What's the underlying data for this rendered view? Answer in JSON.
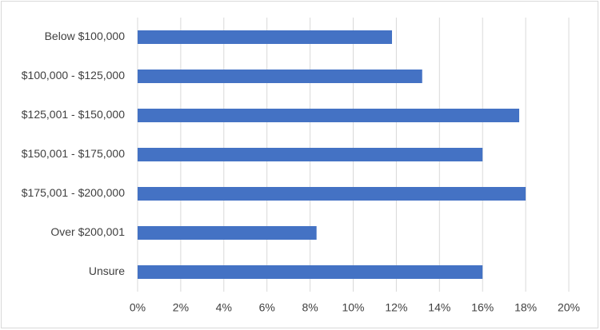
{
  "chart_data": {
    "type": "hbar",
    "categories": [
      "Below $100,000",
      "$100,000 - $125,000",
      "$125,001 - $150,000",
      "$150,001 - $175,000",
      "$175,001 - $200,000",
      "Over $200,001",
      "Unsure"
    ],
    "values": [
      11.8,
      13.2,
      17.7,
      16.0,
      18.0,
      8.3,
      16.0
    ],
    "color": "#4472c4",
    "xlim": [
      0,
      20
    ],
    "xticks": [
      {
        "value": 0,
        "label": "0%"
      },
      {
        "value": 2,
        "label": "2%"
      },
      {
        "value": 4,
        "label": "4%"
      },
      {
        "value": 6,
        "label": "6%"
      },
      {
        "value": 8,
        "label": "8%"
      },
      {
        "value": 10,
        "label": "10%"
      },
      {
        "value": 12,
        "label": "12%"
      },
      {
        "value": 14,
        "label": "14%"
      },
      {
        "value": 16,
        "label": "16%"
      },
      {
        "value": 18,
        "label": "18%"
      },
      {
        "value": 20,
        "label": "20%"
      }
    ],
    "grid": true
  }
}
